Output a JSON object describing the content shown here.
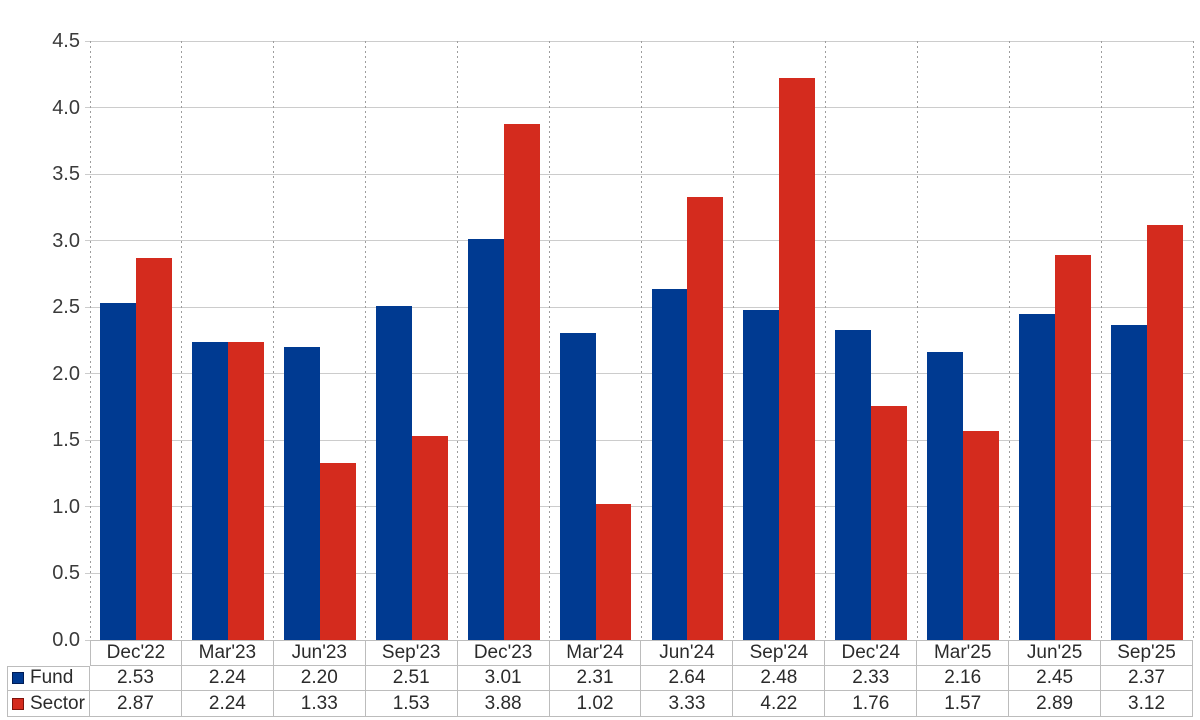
{
  "chart_data": {
    "type": "bar",
    "categories": [
      "Dec'22",
      "Mar'23",
      "Jun'23",
      "Sep'23",
      "Dec'23",
      "Mar'24",
      "Jun'24",
      "Sep'24",
      "Dec'24",
      "Mar'25",
      "Jun'25",
      "Sep'25"
    ],
    "series": [
      {
        "name": "Fund",
        "color": "#003a91",
        "swatch_border": "#001c55",
        "values": [
          2.53,
          2.24,
          2.2,
          2.51,
          3.01,
          2.31,
          2.64,
          2.48,
          2.33,
          2.16,
          2.45,
          2.37
        ]
      },
      {
        "name": "Sector",
        "color": "#d42b1e",
        "swatch_border": "#7e130b",
        "values": [
          2.87,
          2.24,
          1.33,
          1.53,
          3.88,
          1.02,
          3.33,
          4.22,
          1.76,
          1.57,
          2.89,
          3.12
        ]
      }
    ],
    "title": "",
    "xlabel": "",
    "ylabel": "",
    "ylim": [
      0,
      4.5
    ],
    "ytick_step": 0.5,
    "ytick_labels": [
      "0.0",
      "0.5",
      "1.0",
      "1.5",
      "2.0",
      "2.5",
      "3.0",
      "3.5",
      "4.0",
      "4.5"
    ],
    "grid": true,
    "legend_position": "table-left",
    "value_decimals": 2
  },
  "style": {
    "h_gridline_color": "#cccccc",
    "v_gridline_color": "#9d9d9d",
    "table_border_color": "#bcbcbc",
    "axis_text_color": "#3a3a3a",
    "table_text_color": "#2b2b2b",
    "background": "#ffffff"
  }
}
